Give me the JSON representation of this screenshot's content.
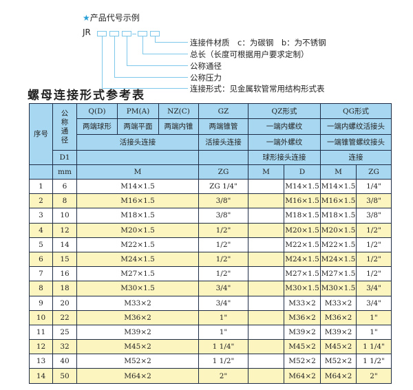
{
  "code_example": {
    "title": "产品代号示例",
    "prefix": "JR",
    "star_color": "#2a9fd6",
    "captions": [
      "连接件材质　c：为碳钢　b：为不锈钢",
      "总长（长度可根据用户要求定制）",
      "公称通径",
      "公称压力",
      "连接形式：见金属软管常用结构形式表"
    ]
  },
  "table_title": "螺母连接形式参考表",
  "header": {
    "seq": "序号",
    "nominal": "公称通径",
    "d1": "D1",
    "mm": "mm",
    "forms": [
      "Q(D)",
      "PM(A)",
      "NZ(C)",
      "GZ",
      "QZ形式",
      "QG形式"
    ],
    "desc": [
      "两端球形",
      "两端平面",
      "两端内锥",
      "两端锥管",
      "一端内螺纹",
      "一端内螺纹活接头"
    ],
    "conn1": "活接头连接",
    "conn2": "活接头连接",
    "qz_ext": "一端外螺纹",
    "qg_ext": "一端锥管螺纹接头",
    "qz_conn": "球形接头连接",
    "qg_conn": "连接",
    "units": [
      "M",
      "ZG",
      "M",
      "D",
      "M",
      "ZG"
    ]
  },
  "rows": [
    [
      "1",
      "6",
      "M14×1.5",
      "ZG 1/4\"",
      "",
      "M14×1.5",
      "M14×1.5",
      "1/4\""
    ],
    [
      "2",
      "8",
      "M16×1.5",
      "3/8\"",
      "",
      "M16×1.5",
      "M16×1.5",
      "3/8\""
    ],
    [
      "3",
      "10",
      "M18×1.5",
      "3/8\"",
      "",
      "M18×1.5",
      "M18×1.5",
      "3/8\""
    ],
    [
      "4",
      "12",
      "M20×1.5",
      "1/2\"",
      "",
      "M20×1.5",
      "M20×1.5",
      "1/2\""
    ],
    [
      "5",
      "14",
      "M22×1.5",
      "1/2\"",
      "",
      "M22×1.5",
      "M22×1.5",
      "1/2\""
    ],
    [
      "6",
      "15",
      "M24×1.5",
      "1/2\"",
      "",
      "M24×1.5",
      "M24×1.5",
      "1/2\""
    ],
    [
      "7",
      "16",
      "M27×1.5",
      "1/2\"",
      "",
      "M27×1.5",
      "M27×1.5",
      "1/2\""
    ],
    [
      "8",
      "18",
      "M30×1.5",
      "3/4\"",
      "",
      "M30×1.5",
      "M30×1.5",
      "3/4\""
    ],
    [
      "9",
      "20",
      "M33×2",
      "3/4\"",
      "",
      "M33×2",
      "M33×2",
      "3/4\""
    ],
    [
      "10",
      "22",
      "M36×2",
      "1\"",
      "",
      "M36×2",
      "M36×2",
      "1\""
    ],
    [
      "11",
      "25",
      "M39×2",
      "1\"",
      "",
      "M39×2",
      "M39×2",
      "1\""
    ],
    [
      "12",
      "32",
      "M45×2",
      "1 1/4\"",
      "",
      "M45×2",
      "M45×2",
      "1 1/4\""
    ],
    [
      "13",
      "40",
      "M52×2",
      "1 1/2\"",
      "",
      "M52×2",
      "M52×2",
      "1 1/2\""
    ],
    [
      "14",
      "50",
      "M64×2",
      "2\"",
      "",
      "M64×2",
      "M64×2",
      "2\""
    ]
  ]
}
